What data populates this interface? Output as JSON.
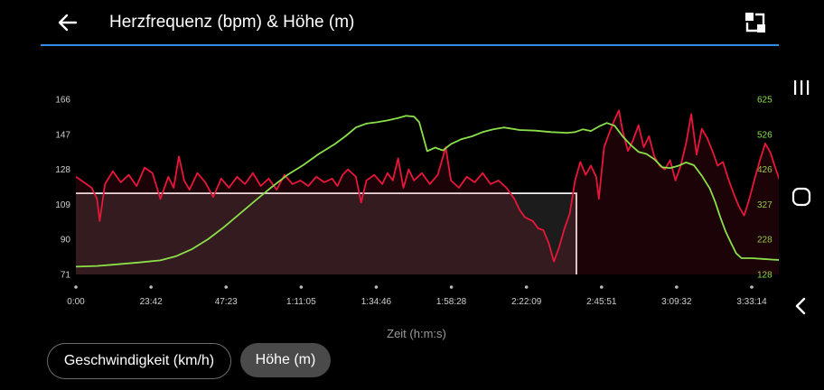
{
  "header": {
    "title": "Herzfrequenz (bpm) & Höhe (m)",
    "back_icon": "arrow-left-icon",
    "expand_icon": "expand-icon"
  },
  "chart_data": {
    "type": "line",
    "xlabel": "Zeit (h:m:s)",
    "x_ticks": [
      "0:00",
      "23:42",
      "47:23",
      "1:11:05",
      "1:34:46",
      "1:58:28",
      "2:22:09",
      "2:45:51",
      "3:09:32",
      "3:33:14"
    ],
    "x_tick_seconds": [
      0,
      1422,
      2843,
      4265,
      5686,
      7108,
      8529,
      9951,
      11372,
      12794
    ],
    "left_axis": {
      "ticks": [
        "166",
        "147",
        "128",
        "109",
        "90",
        "71"
      ],
      "ylim": [
        71,
        166
      ]
    },
    "right_axis": {
      "ticks": [
        "625",
        "526",
        "426",
        "327",
        "228",
        "128"
      ],
      "ylim": [
        128,
        625
      ]
    },
    "selection": {
      "x_start_seconds": 0,
      "x_end_seconds": 9475,
      "y_value": 115
    },
    "series": [
      {
        "color": "#e8163a",
        "axis": "left",
        "values": [
          [
            0,
            124
          ],
          [
            150,
            121
          ],
          [
            300,
            118
          ],
          [
            400,
            112
          ],
          [
            450,
            100
          ],
          [
            550,
            120
          ],
          [
            700,
            127
          ],
          [
            850,
            121
          ],
          [
            1000,
            125
          ],
          [
            1150,
            119
          ],
          [
            1300,
            129
          ],
          [
            1450,
            126
          ],
          [
            1600,
            112
          ],
          [
            1750,
            124
          ],
          [
            1850,
            118
          ],
          [
            1950,
            135
          ],
          [
            2050,
            122
          ],
          [
            2150,
            117
          ],
          [
            2300,
            126
          ],
          [
            2450,
            121
          ],
          [
            2600,
            113
          ],
          [
            2750,
            123
          ],
          [
            2900,
            118
          ],
          [
            3050,
            124
          ],
          [
            3200,
            120
          ],
          [
            3350,
            126
          ],
          [
            3500,
            119
          ],
          [
            3650,
            123
          ],
          [
            3800,
            117
          ],
          [
            3950,
            125
          ],
          [
            4100,
            120
          ],
          [
            4250,
            122
          ],
          [
            4400,
            119
          ],
          [
            4550,
            124
          ],
          [
            4700,
            121
          ],
          [
            4850,
            123
          ],
          [
            4950,
            119
          ],
          [
            5050,
            125
          ],
          [
            5150,
            128
          ],
          [
            5300,
            124
          ],
          [
            5400,
            110
          ],
          [
            5500,
            122
          ],
          [
            5650,
            125
          ],
          [
            5800,
            120
          ],
          [
            5900,
            126
          ],
          [
            6000,
            122
          ],
          [
            6100,
            134
          ],
          [
            6200,
            118
          ],
          [
            6300,
            128
          ],
          [
            6400,
            122
          ],
          [
            6550,
            126
          ],
          [
            6700,
            120
          ],
          [
            6850,
            125
          ],
          [
            7000,
            140
          ],
          [
            7100,
            122
          ],
          [
            7250,
            118
          ],
          [
            7400,
            124
          ],
          [
            7550,
            121
          ],
          [
            7700,
            126
          ],
          [
            7850,
            120
          ],
          [
            8000,
            122
          ],
          [
            8150,
            118
          ],
          [
            8300,
            112
          ],
          [
            8400,
            106
          ],
          [
            8500,
            102
          ],
          [
            8650,
            100
          ],
          [
            8750,
            96
          ],
          [
            8850,
            95
          ],
          [
            8950,
            88
          ],
          [
            9050,
            78
          ],
          [
            9150,
            86
          ],
          [
            9250,
            96
          ],
          [
            9350,
            104
          ],
          [
            9450,
            122
          ],
          [
            9550,
            132
          ],
          [
            9650,
            125
          ],
          [
            9750,
            130
          ],
          [
            9850,
            124
          ],
          [
            9900,
            112
          ],
          [
            10000,
            140
          ],
          [
            10100,
            148
          ],
          [
            10200,
            155
          ],
          [
            10280,
            160
          ],
          [
            10350,
            149
          ],
          [
            10450,
            138
          ],
          [
            10550,
            144
          ],
          [
            10650,
            152
          ],
          [
            10750,
            140
          ],
          [
            10850,
            146
          ],
          [
            10950,
            135
          ],
          [
            11050,
            130
          ],
          [
            11150,
            128
          ],
          [
            11250,
            133
          ],
          [
            11350,
            122
          ],
          [
            11450,
            130
          ],
          [
            11550,
            142
          ],
          [
            11650,
            158
          ],
          [
            11750,
            136
          ],
          [
            11850,
            150
          ],
          [
            11950,
            145
          ],
          [
            12050,
            138
          ],
          [
            12150,
            130
          ],
          [
            12250,
            132
          ],
          [
            12350,
            123
          ],
          [
            12450,
            115
          ],
          [
            12550,
            108
          ],
          [
            12650,
            103
          ],
          [
            12750,
            112
          ],
          [
            12850,
            123
          ],
          [
            12950,
            133
          ],
          [
            13050,
            142
          ],
          [
            13150,
            137
          ],
          [
            13250,
            128
          ],
          [
            13350,
            120
          ],
          [
            13460,
            123
          ]
        ]
      },
      {
        "color": "#8be04a",
        "axis": "right",
        "values": [
          [
            0,
            150
          ],
          [
            400,
            152
          ],
          [
            800,
            157
          ],
          [
            1200,
            162
          ],
          [
            1600,
            168
          ],
          [
            1900,
            180
          ],
          [
            2200,
            200
          ],
          [
            2500,
            228
          ],
          [
            2800,
            262
          ],
          [
            3100,
            300
          ],
          [
            3400,
            338
          ],
          [
            3700,
            375
          ],
          [
            4000,
            410
          ],
          [
            4300,
            438
          ],
          [
            4600,
            470
          ],
          [
            4900,
            498
          ],
          [
            5100,
            520
          ],
          [
            5300,
            545
          ],
          [
            5500,
            556
          ],
          [
            5700,
            560
          ],
          [
            5900,
            565
          ],
          [
            6100,
            572
          ],
          [
            6250,
            578
          ],
          [
            6400,
            576
          ],
          [
            6500,
            560
          ],
          [
            6650,
            478
          ],
          [
            6800,
            488
          ],
          [
            6950,
            480
          ],
          [
            7100,
            498
          ],
          [
            7300,
            512
          ],
          [
            7500,
            520
          ],
          [
            7700,
            532
          ],
          [
            7900,
            540
          ],
          [
            8100,
            545
          ],
          [
            8400,
            538
          ],
          [
            8700,
            536
          ],
          [
            9000,
            532
          ],
          [
            9300,
            530
          ],
          [
            9450,
            532
          ],
          [
            9600,
            540
          ],
          [
            9750,
            535
          ],
          [
            9900,
            548
          ],
          [
            10050,
            558
          ],
          [
            10200,
            550
          ],
          [
            10350,
            520
          ],
          [
            10500,
            496
          ],
          [
            10650,
            476
          ],
          [
            10800,
            470
          ],
          [
            10950,
            455
          ],
          [
            11100,
            432
          ],
          [
            11250,
            430
          ],
          [
            11400,
            436
          ],
          [
            11550,
            446
          ],
          [
            11700,
            438
          ],
          [
            11850,
            408
          ],
          [
            12000,
            372
          ],
          [
            12100,
            335
          ],
          [
            12200,
            290
          ],
          [
            12300,
            250
          ],
          [
            12400,
            218
          ],
          [
            12500,
            188
          ],
          [
            12600,
            174
          ],
          [
            12800,
            174
          ],
          [
            13000,
            172
          ],
          [
            13200,
            170
          ],
          [
            13460,
            168
          ]
        ]
      }
    ]
  },
  "chips": [
    {
      "label": "Geschwindigkeit (km/h)",
      "selected": false
    },
    {
      "label": "Höhe (m)",
      "selected": true
    }
  ],
  "system_nav": {
    "recents_icon": "recents-icon",
    "home_icon": "home-icon",
    "back_icon": "system-back-icon"
  },
  "colors": {
    "accent": "#2f8fe6",
    "heart_rate": "#e8163a",
    "altitude": "#8be04a"
  }
}
